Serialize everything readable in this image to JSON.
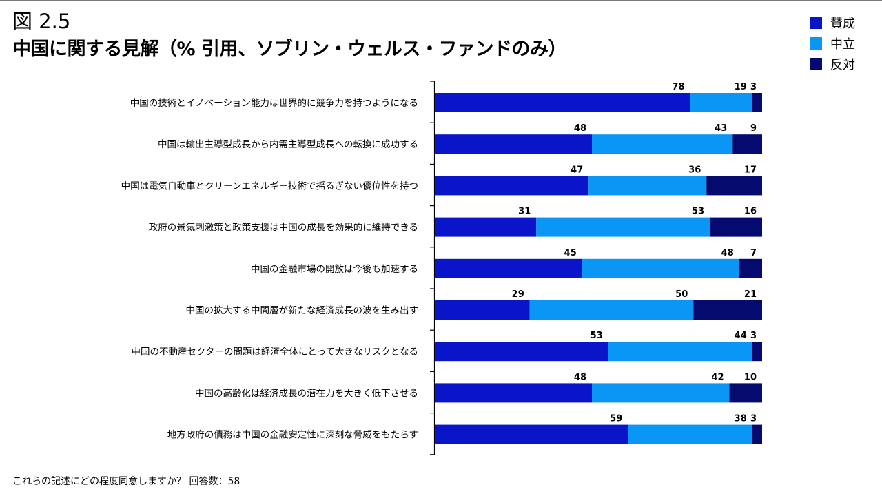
{
  "figure_label": "図 2.5",
  "title": "中国に関する見解（% 引用、ソブリン・ウェルス・ファンドのみ）",
  "footnote": "これらの記述にどの程度同意しますか？ 回答数：58",
  "colors": {
    "agree": "#0a14c8",
    "neutral": "#0a96f5",
    "disagree": "#050a6e"
  },
  "chart_data": {
    "type": "bar",
    "orientation": "horizontal",
    "stacked": true,
    "title": "中国に関する見解（% 引用、ソブリン・ウェルス・ファンドのみ）",
    "categories": [
      "中国の技術とイノベーション能力は世界的に競争力を持つようになる",
      "中国は輸出主導型成長から内需主導型成長への転換に成功する",
      "中国は電気自動車とクリーンエネルギー技術で揺るぎない優位性を持つ",
      "政府の景気刺激策と政策支援は中国の成長を効果的に維持できる",
      "中国の金融市場の開放は今後も加速する",
      "中国の拡大する中間層が新たな経済成長の波を生み出す",
      "中国の不動産セクターの問題は経済全体にとって大きなリスクとなる",
      "中国の高齢化は経済成長の潜在力を大きく低下させる",
      "地方政府の債務は中国の金融安定性に深刻な脅威をもたらす"
    ],
    "series": [
      {
        "name": "賛成",
        "values": [
          78,
          48,
          47,
          31,
          45,
          29,
          53,
          48,
          59
        ]
      },
      {
        "name": "中立",
        "values": [
          19,
          43,
          36,
          53,
          48,
          50,
          44,
          42,
          38
        ]
      },
      {
        "name": "反対",
        "values": [
          3,
          9,
          17,
          16,
          7,
          21,
          3,
          10,
          3
        ]
      }
    ],
    "xlim": [
      0,
      100
    ],
    "legend_position": "top-right",
    "grid": false
  }
}
